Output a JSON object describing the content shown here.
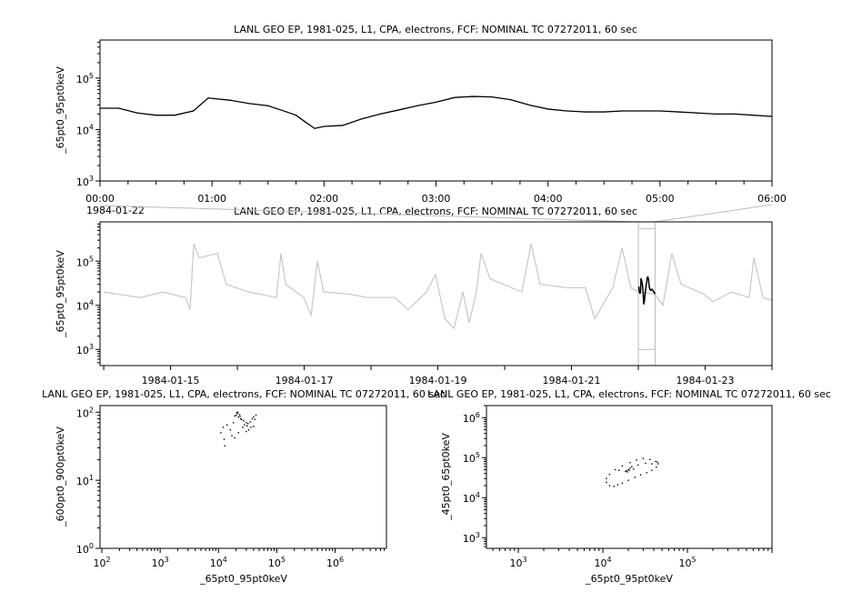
{
  "chart_data": [
    {
      "id": "top",
      "type": "line",
      "title": "LANL GEO EP, 1981-025, L1, CPA, electrons, FCF: NOMINAL TC 07272011, 60 sec",
      "ylabel": "_65pt0_95pt0keV",
      "xlabel": "",
      "date_label": "1984-01-22",
      "yscale": "log",
      "ylim": [
        1000,
        550000
      ],
      "xlim": [
        "00:00",
        "06:00"
      ],
      "x_tick_labels": [
        "00:00",
        "01:00",
        "02:00",
        "03:00",
        "04:00",
        "05:00",
        "06:00"
      ],
      "y_tick_labels": [
        {
          "base": "10",
          "exp": "3"
        },
        {
          "base": "10",
          "exp": "4"
        },
        {
          "base": "10",
          "exp": "5"
        }
      ],
      "line_color": "#000000",
      "series": [
        {
          "x": [
            "00:00",
            "00:10",
            "00:20",
            "00:30",
            "00:40",
            "00:50",
            "00:58",
            "01:10",
            "01:20",
            "01:30",
            "01:40",
            "01:45",
            "01:50",
            "01:55",
            "02:00",
            "02:10",
            "02:20",
            "02:30",
            "02:40",
            "02:50",
            "03:00",
            "03:10",
            "03:20",
            "03:30",
            "03:40",
            "03:50",
            "04:00",
            "04:10",
            "04:20",
            "04:30",
            "04:40",
            "04:50",
            "05:00",
            "05:10",
            "05:20",
            "05:30",
            "05:40",
            "05:50",
            "06:00"
          ],
          "y": [
            26000,
            26000,
            21000,
            19000,
            19000,
            23000,
            41000,
            37000,
            32000,
            29000,
            22000,
            19000,
            14000,
            10500,
            11500,
            12000,
            16000,
            20000,
            24000,
            29000,
            34000,
            42000,
            44000,
            43000,
            38000,
            30000,
            25000,
            23000,
            22000,
            22000,
            23000,
            23000,
            23000,
            22000,
            21000,
            20000,
            20000,
            19000,
            18000
          ]
        }
      ]
    },
    {
      "id": "overview",
      "type": "line",
      "title": "LANL GEO EP, 1981-025, L1, CPA, electrons, FCF: NOMINAL TC 07272011, 60 sec",
      "ylabel": "_65pt0_95pt0keV",
      "yscale": "log",
      "ylim": [
        430,
        780000
      ],
      "xlim": [
        "1984-01-13 22:40",
        "1984-01-24 00:00"
      ],
      "x_tick_labels": [
        "1984-01-15",
        "1984-01-17",
        "1984-01-19",
        "1984-01-21",
        "1984-01-23"
      ],
      "y_tick_labels": [
        {
          "base": "10",
          "exp": "3"
        },
        {
          "base": "10",
          "exp": "4"
        },
        {
          "base": "10",
          "exp": "5"
        }
      ],
      "line_color": "#c8c8c8",
      "highlight_color": "#000000",
      "highlight_range": [
        "1984-01-22 00:00",
        "1984-01-22 06:00"
      ],
      "series": [
        {
          "x": [
            "1984-01-14 00:00",
            "1984-01-14 13:00",
            "1984-01-14 21:10",
            "1984-01-15 05:20",
            "1984-01-15 07:00",
            "1984-01-15 08:20",
            "1984-01-15 10:20",
            "1984-01-15 16:50",
            "1984-01-15 20:00",
            "1984-01-16 04:15",
            "1984-01-16 14:00",
            "1984-01-16 15:40",
            "1984-01-16 17:20",
            "1984-01-16 23:50",
            "1984-01-17 02:30",
            "1984-01-17 04:45",
            "1984-01-17 07:00",
            "1984-01-17 16:10",
            "1984-01-17 22:40",
            "1984-01-18 08:30",
            "1984-01-18 13:20",
            "1984-01-18 19:55",
            "1984-01-18 23:10",
            "1984-01-19 02:30",
            "1984-01-19 05:45",
            "1984-01-19 09:00",
            "1984-01-19 11:15",
            "1984-01-19 13:50",
            "1984-01-19 15:30",
            "1984-01-19 18:45",
            "1984-01-20 06:10",
            "1984-01-20 09:30",
            "1984-01-20 12:45",
            "1984-01-20 22:30",
            "1984-01-21 05:00",
            "1984-01-21 08:20",
            "1984-01-21 14:50",
            "1984-01-21 18:10",
            "1984-01-21 21:20",
            "1984-01-22 00:00",
            "1984-01-22 06:00",
            "1984-01-22 08:50",
            "1984-01-22 12:00",
            "1984-01-22 15:20",
            "1984-01-22 23:30",
            "1984-01-23 02:50",
            "1984-01-23 09:20",
            "1984-01-23 15:50",
            "1984-01-23 17:30",
            "1984-01-23 20:45",
            "1984-01-24 00:00"
          ],
          "y": [
            20000,
            15000,
            20000,
            15000,
            8000,
            250000,
            120000,
            150000,
            30000,
            20000,
            15000,
            150000,
            30000,
            15000,
            6000,
            100000,
            20000,
            18000,
            15000,
            15000,
            8000,
            20000,
            50000,
            5000,
            3000,
            20000,
            4000,
            20000,
            150000,
            40000,
            20000,
            250000,
            30000,
            25000,
            25000,
            5000,
            25000,
            200000,
            25000,
            20000,
            18000,
            10000,
            150000,
            30000,
            18000,
            12000,
            20000,
            15000,
            120000,
            15000,
            13000
          ]
        }
      ]
    },
    {
      "id": "scatter-left",
      "type": "scatter",
      "title": "LANL GEO EP, 1981-025, L1, CPA, electrons, FCF: NOMINAL TC 07272011, 60 sec",
      "xlabel": "_65pt0_95pt0keV",
      "ylabel": "_600pt0_900pt0keV",
      "xscale": "log",
      "yscale": "log",
      "xlim": [
        93,
        7600000
      ],
      "ylim": [
        1,
        125
      ],
      "x_tick_labels": [
        {
          "base": "10",
          "exp": "2"
        },
        {
          "base": "10",
          "exp": "3"
        },
        {
          "base": "10",
          "exp": "4"
        },
        {
          "base": "10",
          "exp": "5"
        },
        {
          "base": "10",
          "exp": "6"
        }
      ],
      "y_tick_labels": [
        {
          "base": "10",
          "exp": "0"
        },
        {
          "base": "10",
          "exp": "1"
        },
        {
          "base": "10",
          "exp": "2"
        }
      ],
      "marker_color": "#000000",
      "points": [
        [
          20000,
          90
        ],
        [
          21000,
          95
        ],
        [
          22000,
          85
        ],
        [
          23000,
          92
        ],
        [
          19000,
          88
        ],
        [
          24000,
          80
        ],
        [
          25000,
          78
        ],
        [
          27000,
          75
        ],
        [
          30000,
          70
        ],
        [
          32000,
          68
        ],
        [
          35000,
          72
        ],
        [
          38000,
          80
        ],
        [
          40000,
          85
        ],
        [
          42000,
          78
        ],
        [
          36000,
          60
        ],
        [
          33000,
          55
        ],
        [
          28000,
          65
        ],
        [
          26000,
          60
        ],
        [
          18000,
          70
        ],
        [
          16000,
          55
        ],
        [
          14000,
          65
        ],
        [
          12000,
          60
        ],
        [
          11000,
          50
        ],
        [
          12500,
          40
        ],
        [
          12800,
          32
        ],
        [
          17000,
          45
        ],
        [
          19000,
          42
        ],
        [
          22000,
          50
        ],
        [
          30000,
          52
        ],
        [
          40000,
          62
        ],
        [
          44000,
          90
        ],
        [
          21500,
          100
        ],
        [
          20500,
          98
        ],
        [
          23500,
          87
        ],
        [
          31000,
          63
        ]
      ]
    },
    {
      "id": "scatter-right",
      "type": "scatter",
      "title": "LANL GEO EP, 1981-025, L1, CPA, electrons, FCF: NOMINAL TC 07272011, 60 sec",
      "xlabel": "_65pt0_95pt0keV",
      "ylabel": "_45pt0_65pt0keV",
      "xscale": "log",
      "yscale": "log",
      "xlim": [
        420,
        1000000
      ],
      "ylim": [
        540,
        2000000
      ],
      "x_tick_labels": [
        {
          "base": "10",
          "exp": "3"
        },
        {
          "base": "10",
          "exp": "4"
        },
        {
          "base": "10",
          "exp": "5"
        }
      ],
      "y_tick_labels": [
        {
          "base": "10",
          "exp": "3"
        },
        {
          "base": "10",
          "exp": "4"
        },
        {
          "base": "10",
          "exp": "5"
        },
        {
          "base": "10",
          "exp": "6"
        }
      ],
      "marker_color": "#000000",
      "points": [
        [
          11000,
          24000
        ],
        [
          12000,
          20000
        ],
        [
          13500,
          19000
        ],
        [
          15000,
          21000
        ],
        [
          17000,
          23000
        ],
        [
          20000,
          27000
        ],
        [
          24000,
          32000
        ],
        [
          28000,
          37000
        ],
        [
          33000,
          42000
        ],
        [
          38000,
          48000
        ],
        [
          43000,
          58000
        ],
        [
          45000,
          70000
        ],
        [
          42000,
          80000
        ],
        [
          36000,
          90000
        ],
        [
          30000,
          95000
        ],
        [
          25000,
          88000
        ],
        [
          21000,
          75000
        ],
        [
          17000,
          62000
        ],
        [
          14000,
          50000
        ],
        [
          12000,
          38000
        ],
        [
          11000,
          30000
        ],
        [
          19000,
          47000
        ],
        [
          20000,
          50000
        ],
        [
          21000,
          55000
        ],
        [
          22000,
          60000
        ],
        [
          18500,
          45000
        ],
        [
          23000,
          52000
        ],
        [
          20500,
          48000
        ],
        [
          26000,
          65000
        ],
        [
          32000,
          72000
        ],
        [
          38000,
          70000
        ],
        [
          44000,
          78000
        ],
        [
          15500,
          48000
        ],
        [
          19500,
          44000
        ]
      ]
    }
  ]
}
